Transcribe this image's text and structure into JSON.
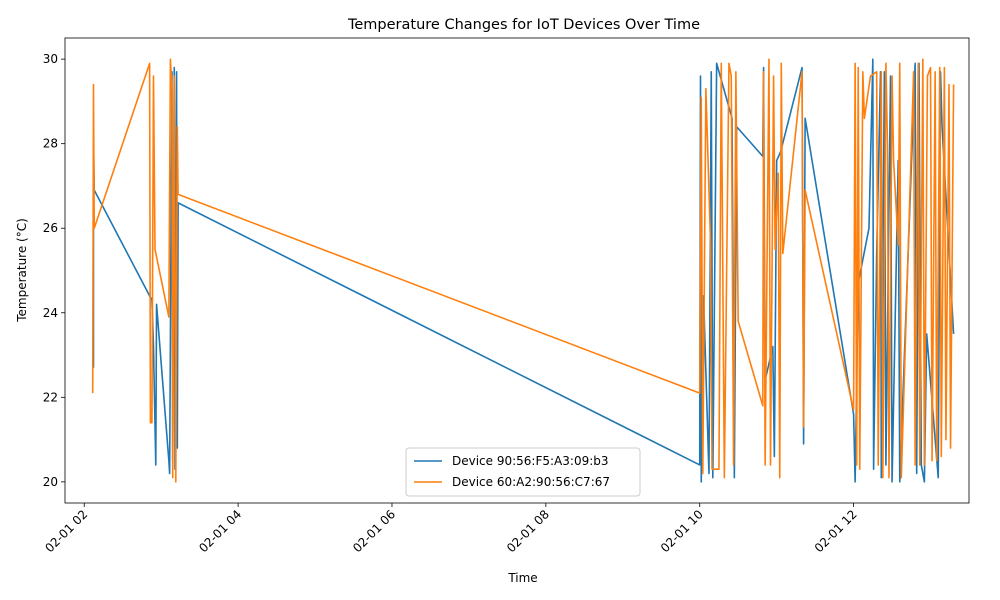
{
  "chart_data": {
    "type": "line",
    "title": "Temperature Changes for IoT Devices Over Time",
    "xlabel": "Time",
    "ylabel": "Temperature (°C)",
    "xlim_hours": [
      1.75,
      13.5
    ],
    "ylim": [
      19.5,
      30.5
    ],
    "x_ticks": [
      {
        "hour": 2,
        "label": "02-01 02"
      },
      {
        "hour": 4,
        "label": "02-01 04"
      },
      {
        "hour": 6,
        "label": "02-01 06"
      },
      {
        "hour": 8,
        "label": "02-01 08"
      },
      {
        "hour": 10,
        "label": "02-01 10"
      },
      {
        "hour": 12,
        "label": "02-01 12"
      }
    ],
    "y_ticks": [
      20,
      22,
      24,
      26,
      28,
      30
    ],
    "legend_position": "bottom-center",
    "series": [
      {
        "name": "Device 90:56:F5:A3:09:b3",
        "color": "#1f77b4",
        "points": [
          [
            2.12,
            22.7
          ],
          [
            2.12,
            28.1
          ],
          [
            2.13,
            26.9
          ],
          [
            2.85,
            24.4
          ],
          [
            2.88,
            24.3
          ],
          [
            2.9,
            23.2
          ],
          [
            2.93,
            20.4
          ],
          [
            2.94,
            24.2
          ],
          [
            3.1,
            20.5
          ],
          [
            3.11,
            20.2
          ],
          [
            3.14,
            29.7
          ],
          [
            3.15,
            20.5
          ],
          [
            3.17,
            29.8
          ],
          [
            3.18,
            20.3
          ],
          [
            3.2,
            29.7
          ],
          [
            3.21,
            20.8
          ],
          [
            3.22,
            26.6
          ],
          [
            10.0,
            20.4
          ],
          [
            10.01,
            29.6
          ],
          [
            10.02,
            20.0
          ],
          [
            10.05,
            24.4
          ],
          [
            10.12,
            20.2
          ],
          [
            10.15,
            29.7
          ],
          [
            10.17,
            20.1
          ],
          [
            10.22,
            29.9
          ],
          [
            10.42,
            28.6
          ],
          [
            10.45,
            20.1
          ],
          [
            10.48,
            28.4
          ],
          [
            10.82,
            27.7
          ],
          [
            10.83,
            29.8
          ],
          [
            10.85,
            22.4
          ],
          [
            10.95,
            23.2
          ],
          [
            10.97,
            20.6
          ],
          [
            11.0,
            27.6
          ],
          [
            11.05,
            27.8
          ],
          [
            11.33,
            29.8
          ],
          [
            11.35,
            20.9
          ],
          [
            11.37,
            28.6
          ],
          [
            12.0,
            21.6
          ],
          [
            12.02,
            20.0
          ],
          [
            12.06,
            24.7
          ],
          [
            12.2,
            26.0
          ],
          [
            12.25,
            30.0
          ],
          [
            12.26,
            20.3
          ],
          [
            12.3,
            25.4
          ],
          [
            12.35,
            29.7
          ],
          [
            12.36,
            20.1
          ],
          [
            12.4,
            29.7
          ],
          [
            12.42,
            20.4
          ],
          [
            12.48,
            29.6
          ],
          [
            12.5,
            20.0
          ],
          [
            12.58,
            27.6
          ],
          [
            12.6,
            20.0
          ],
          [
            12.8,
            29.9
          ],
          [
            12.82,
            20.2
          ],
          [
            12.85,
            29.9
          ],
          [
            12.88,
            20.4
          ],
          [
            12.92,
            20.0
          ],
          [
            12.95,
            23.5
          ],
          [
            13.1,
            20.1
          ],
          [
            13.13,
            29.7
          ],
          [
            13.15,
            28.4
          ],
          [
            13.3,
            23.5
          ]
        ]
      },
      {
        "name": "Device 60:A2:90:56:C7:67",
        "color": "#ff7f0e",
        "points": [
          [
            2.11,
            22.1
          ],
          [
            2.12,
            29.4
          ],
          [
            2.13,
            26.0
          ],
          [
            2.85,
            29.9
          ],
          [
            2.86,
            21.4
          ],
          [
            2.88,
            21.4
          ],
          [
            2.9,
            29.6
          ],
          [
            2.92,
            25.5
          ],
          [
            3.1,
            23.9
          ],
          [
            3.12,
            30.0
          ],
          [
            3.14,
            29.3
          ],
          [
            3.15,
            20.1
          ],
          [
            3.17,
            29.6
          ],
          [
            3.19,
            20.0
          ],
          [
            3.21,
            28.4
          ],
          [
            3.22,
            26.8
          ],
          [
            10.0,
            22.1
          ],
          [
            10.02,
            29.1
          ],
          [
            10.04,
            20.2
          ],
          [
            10.08,
            29.3
          ],
          [
            10.14,
            25.7
          ],
          [
            10.16,
            20.3
          ],
          [
            10.25,
            20.3
          ],
          [
            10.28,
            29.9
          ],
          [
            10.32,
            20.1
          ],
          [
            10.38,
            29.9
          ],
          [
            10.41,
            29.6
          ],
          [
            10.44,
            20.4
          ],
          [
            10.47,
            29.7
          ],
          [
            10.5,
            23.8
          ],
          [
            10.82,
            21.8
          ],
          [
            10.83,
            29.7
          ],
          [
            10.85,
            20.4
          ],
          [
            10.9,
            30.0
          ],
          [
            10.92,
            20.4
          ],
          [
            10.96,
            29.6
          ],
          [
            10.98,
            25.5
          ],
          [
            11.02,
            27.3
          ],
          [
            11.04,
            20.1
          ],
          [
            11.06,
            29.9
          ],
          [
            11.08,
            25.4
          ],
          [
            11.33,
            29.7
          ],
          [
            11.35,
            21.3
          ],
          [
            11.37,
            26.9
          ],
          [
            12.0,
            21.7
          ],
          [
            12.02,
            29.9
          ],
          [
            12.04,
            20.4
          ],
          [
            12.06,
            29.8
          ],
          [
            12.08,
            20.3
          ],
          [
            12.12,
            29.7
          ],
          [
            12.14,
            28.6
          ],
          [
            12.22,
            29.6
          ],
          [
            12.3,
            29.7
          ],
          [
            12.32,
            20.4
          ],
          [
            12.36,
            29.7
          ],
          [
            12.38,
            20.1
          ],
          [
            12.42,
            29.9
          ],
          [
            12.44,
            28.0
          ],
          [
            12.46,
            20.1
          ],
          [
            12.5,
            29.6
          ],
          [
            12.52,
            27.6
          ],
          [
            12.58,
            25.6
          ],
          [
            12.6,
            29.9
          ],
          [
            12.62,
            20.1
          ],
          [
            12.78,
            29.7
          ],
          [
            12.8,
            20.4
          ],
          [
            12.84,
            29.9
          ],
          [
            12.86,
            20.4
          ],
          [
            12.9,
            30.0
          ],
          [
            12.92,
            20.4
          ],
          [
            12.96,
            29.6
          ],
          [
            13.0,
            29.8
          ],
          [
            13.02,
            20.5
          ],
          [
            13.06,
            29.7
          ],
          [
            13.08,
            20.5
          ],
          [
            13.12,
            29.8
          ],
          [
            13.14,
            20.6
          ],
          [
            13.18,
            29.8
          ],
          [
            13.2,
            21.0
          ],
          [
            13.24,
            29.4
          ],
          [
            13.26,
            20.8
          ],
          [
            13.3,
            29.4
          ]
        ]
      }
    ]
  }
}
